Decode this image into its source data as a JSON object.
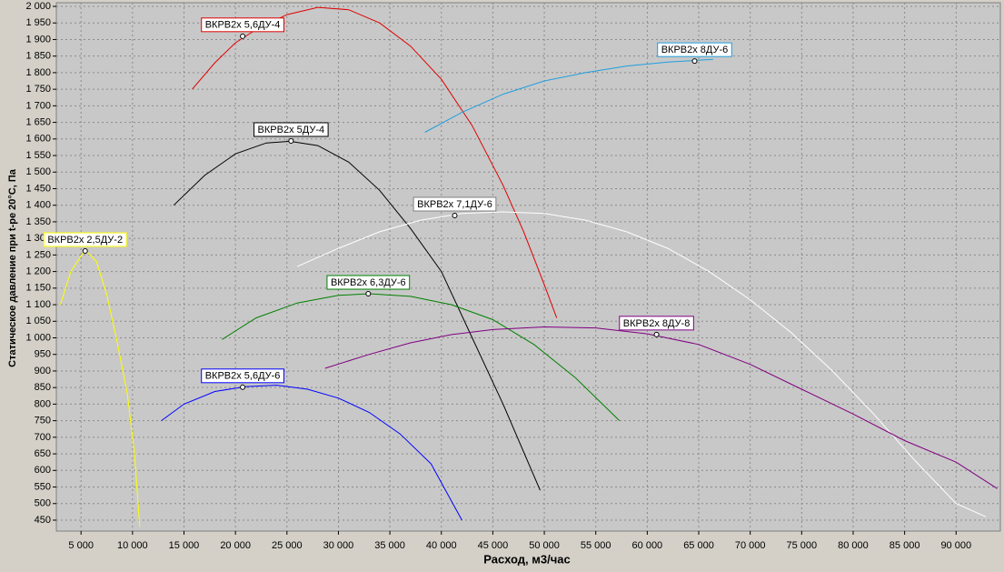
{
  "chart_data": {
    "type": "line",
    "x_label": "Расход, м3/час",
    "y_label": "Статическое давление при t-ре 20°C, Па",
    "xlim": [
      2600,
      94300
    ],
    "ylim": [
      417,
      2011
    ],
    "grid": true,
    "xticks": [
      {
        "value": 5000,
        "label": "5 000"
      },
      {
        "value": 10000,
        "label": "10 000"
      },
      {
        "value": 15000,
        "label": "15 000"
      },
      {
        "value": 20000,
        "label": "20 000"
      },
      {
        "value": 25000,
        "label": "25 000"
      },
      {
        "value": 30000,
        "label": "30 000"
      },
      {
        "value": 35000,
        "label": "35 000"
      },
      {
        "value": 40000,
        "label": "40 000"
      },
      {
        "value": 45000,
        "label": "45 000"
      },
      {
        "value": 50000,
        "label": "50 000"
      },
      {
        "value": 55000,
        "label": "55 000"
      },
      {
        "value": 60000,
        "label": "60 000"
      },
      {
        "value": 65000,
        "label": "65 000"
      },
      {
        "value": 70000,
        "label": "70 000"
      },
      {
        "value": 75000,
        "label": "75 000"
      },
      {
        "value": 80000,
        "label": "80 000"
      },
      {
        "value": 85000,
        "label": "85 000"
      },
      {
        "value": 90000,
        "label": "90 000"
      }
    ],
    "yticks": [
      450,
      500,
      550,
      600,
      650,
      700,
      750,
      800,
      850,
      900,
      950,
      {
        "value": 1000,
        "label": "1 000"
      },
      {
        "value": 1050,
        "label": "1 050"
      },
      {
        "value": 1100,
        "label": "1 100"
      },
      {
        "value": 1150,
        "label": "1 150"
      },
      {
        "value": 1200,
        "label": "1 200"
      },
      {
        "value": 1250,
        "label": "1 250"
      },
      {
        "value": 1300,
        "label": "1 300"
      },
      {
        "value": 1350,
        "label": "1 350"
      },
      {
        "value": 1400,
        "label": "1 400"
      },
      {
        "value": 1450,
        "label": "1 450"
      },
      {
        "value": 1500,
        "label": "1 500"
      },
      {
        "value": 1550,
        "label": "1 550"
      },
      {
        "value": 1600,
        "label": "1 600"
      },
      {
        "value": 1650,
        "label": "1 650"
      },
      {
        "value": 1700,
        "label": "1 700"
      },
      {
        "value": 1750,
        "label": "1 750"
      },
      {
        "value": 1800,
        "label": "1 800"
      },
      {
        "value": 1850,
        "label": "1 850"
      },
      {
        "value": 1900,
        "label": "1 900"
      },
      {
        "value": 1950,
        "label": "1 950"
      },
      {
        "value": 2000,
        "label": "2 000"
      }
    ],
    "series": [
      {
        "name": "ВКРВ2х 5,6ДУ-4",
        "color": "#e00000",
        "marker_x": 20700,
        "marker_y": 1910,
        "x": [
          15800,
          18000,
          20000,
          22000,
          25000,
          28000,
          31000,
          34000,
          37000,
          40000,
          43000,
          46000,
          48000,
          50000,
          51200
        ],
        "values": [
          1750,
          1830,
          1890,
          1930,
          1975,
          1997,
          1990,
          1950,
          1880,
          1780,
          1640,
          1460,
          1320,
          1160,
          1060
        ]
      },
      {
        "name": "ВКРВ2х 8ДУ-6",
        "color": "#1f9fdf",
        "marker_x": 64600,
        "marker_y": 1835,
        "x": [
          38400,
          42000,
          46000,
          50000,
          54000,
          58000,
          62000,
          66400
        ],
        "values": [
          1620,
          1680,
          1735,
          1775,
          1800,
          1820,
          1832,
          1840
        ]
      },
      {
        "name": "ВКРВ2х 5ДУ-4",
        "color": "#000000",
        "marker_x": 25400,
        "marker_y": 1594,
        "x": [
          14000,
          17000,
          20000,
          23000,
          25300,
          28000,
          31000,
          34000,
          37000,
          40000,
          43000,
          46000,
          49600
        ],
        "values": [
          1400,
          1490,
          1555,
          1588,
          1593,
          1580,
          1530,
          1445,
          1330,
          1200,
          1000,
          800,
          540
        ]
      },
      {
        "name": "ВКРВ2х 7,1ДУ-6",
        "color": "#ffffff",
        "marker_x": 41300,
        "marker_y": 1369,
        "x": [
          26000,
          30000,
          34000,
          38000,
          42000,
          46000,
          50000,
          54000,
          58000,
          62000,
          66000,
          70000,
          74000,
          78000,
          82000,
          86000,
          90000,
          92900
        ],
        "values": [
          1215,
          1270,
          1320,
          1355,
          1375,
          1380,
          1375,
          1355,
          1320,
          1270,
          1200,
          1115,
          1015,
          900,
          770,
          630,
          500,
          460
        ]
      },
      {
        "name": "ВКРВ2х 2,5ДУ-2",
        "color": "#ffff00",
        "marker_x": 5400,
        "marker_y": 1262,
        "x": [
          3000,
          4000,
          5400,
          6500,
          7500,
          8500,
          9500,
          10200,
          10700
        ],
        "values": [
          1100,
          1200,
          1265,
          1230,
          1130,
          990,
          830,
          650,
          430
        ]
      },
      {
        "name": "ВКРВ2х 6,3ДУ-6",
        "color": "#008000",
        "marker_x": 32900,
        "marker_y": 1133,
        "x": [
          18700,
          22000,
          26000,
          30000,
          33000,
          37000,
          41000,
          45000,
          49000,
          53000,
          57300
        ],
        "values": [
          995,
          1060,
          1105,
          1128,
          1133,
          1125,
          1100,
          1055,
          980,
          880,
          750
        ]
      },
      {
        "name": "ВКРВ2х 8ДУ-8",
        "color": "#800080",
        "marker_x": 60900,
        "marker_y": 1010,
        "x": [
          28700,
          33000,
          37000,
          41000,
          45000,
          50000,
          55000,
          60000,
          65000,
          70000,
          75000,
          80000,
          85000,
          90000,
          94000
        ],
        "values": [
          908,
          950,
          985,
          1010,
          1025,
          1033,
          1030,
          1012,
          980,
          920,
          845,
          770,
          690,
          625,
          545
        ]
      },
      {
        "name": "ВКРВ2х 5,6ДУ-6",
        "color": "#0000ff",
        "marker_x": 20700,
        "marker_y": 851,
        "x": [
          12800,
          15000,
          18000,
          21000,
          24000,
          27000,
          30000,
          33000,
          36000,
          39000,
          42000
        ],
        "values": [
          750,
          800,
          838,
          853,
          857,
          845,
          818,
          775,
          710,
          620,
          450
        ]
      }
    ]
  }
}
